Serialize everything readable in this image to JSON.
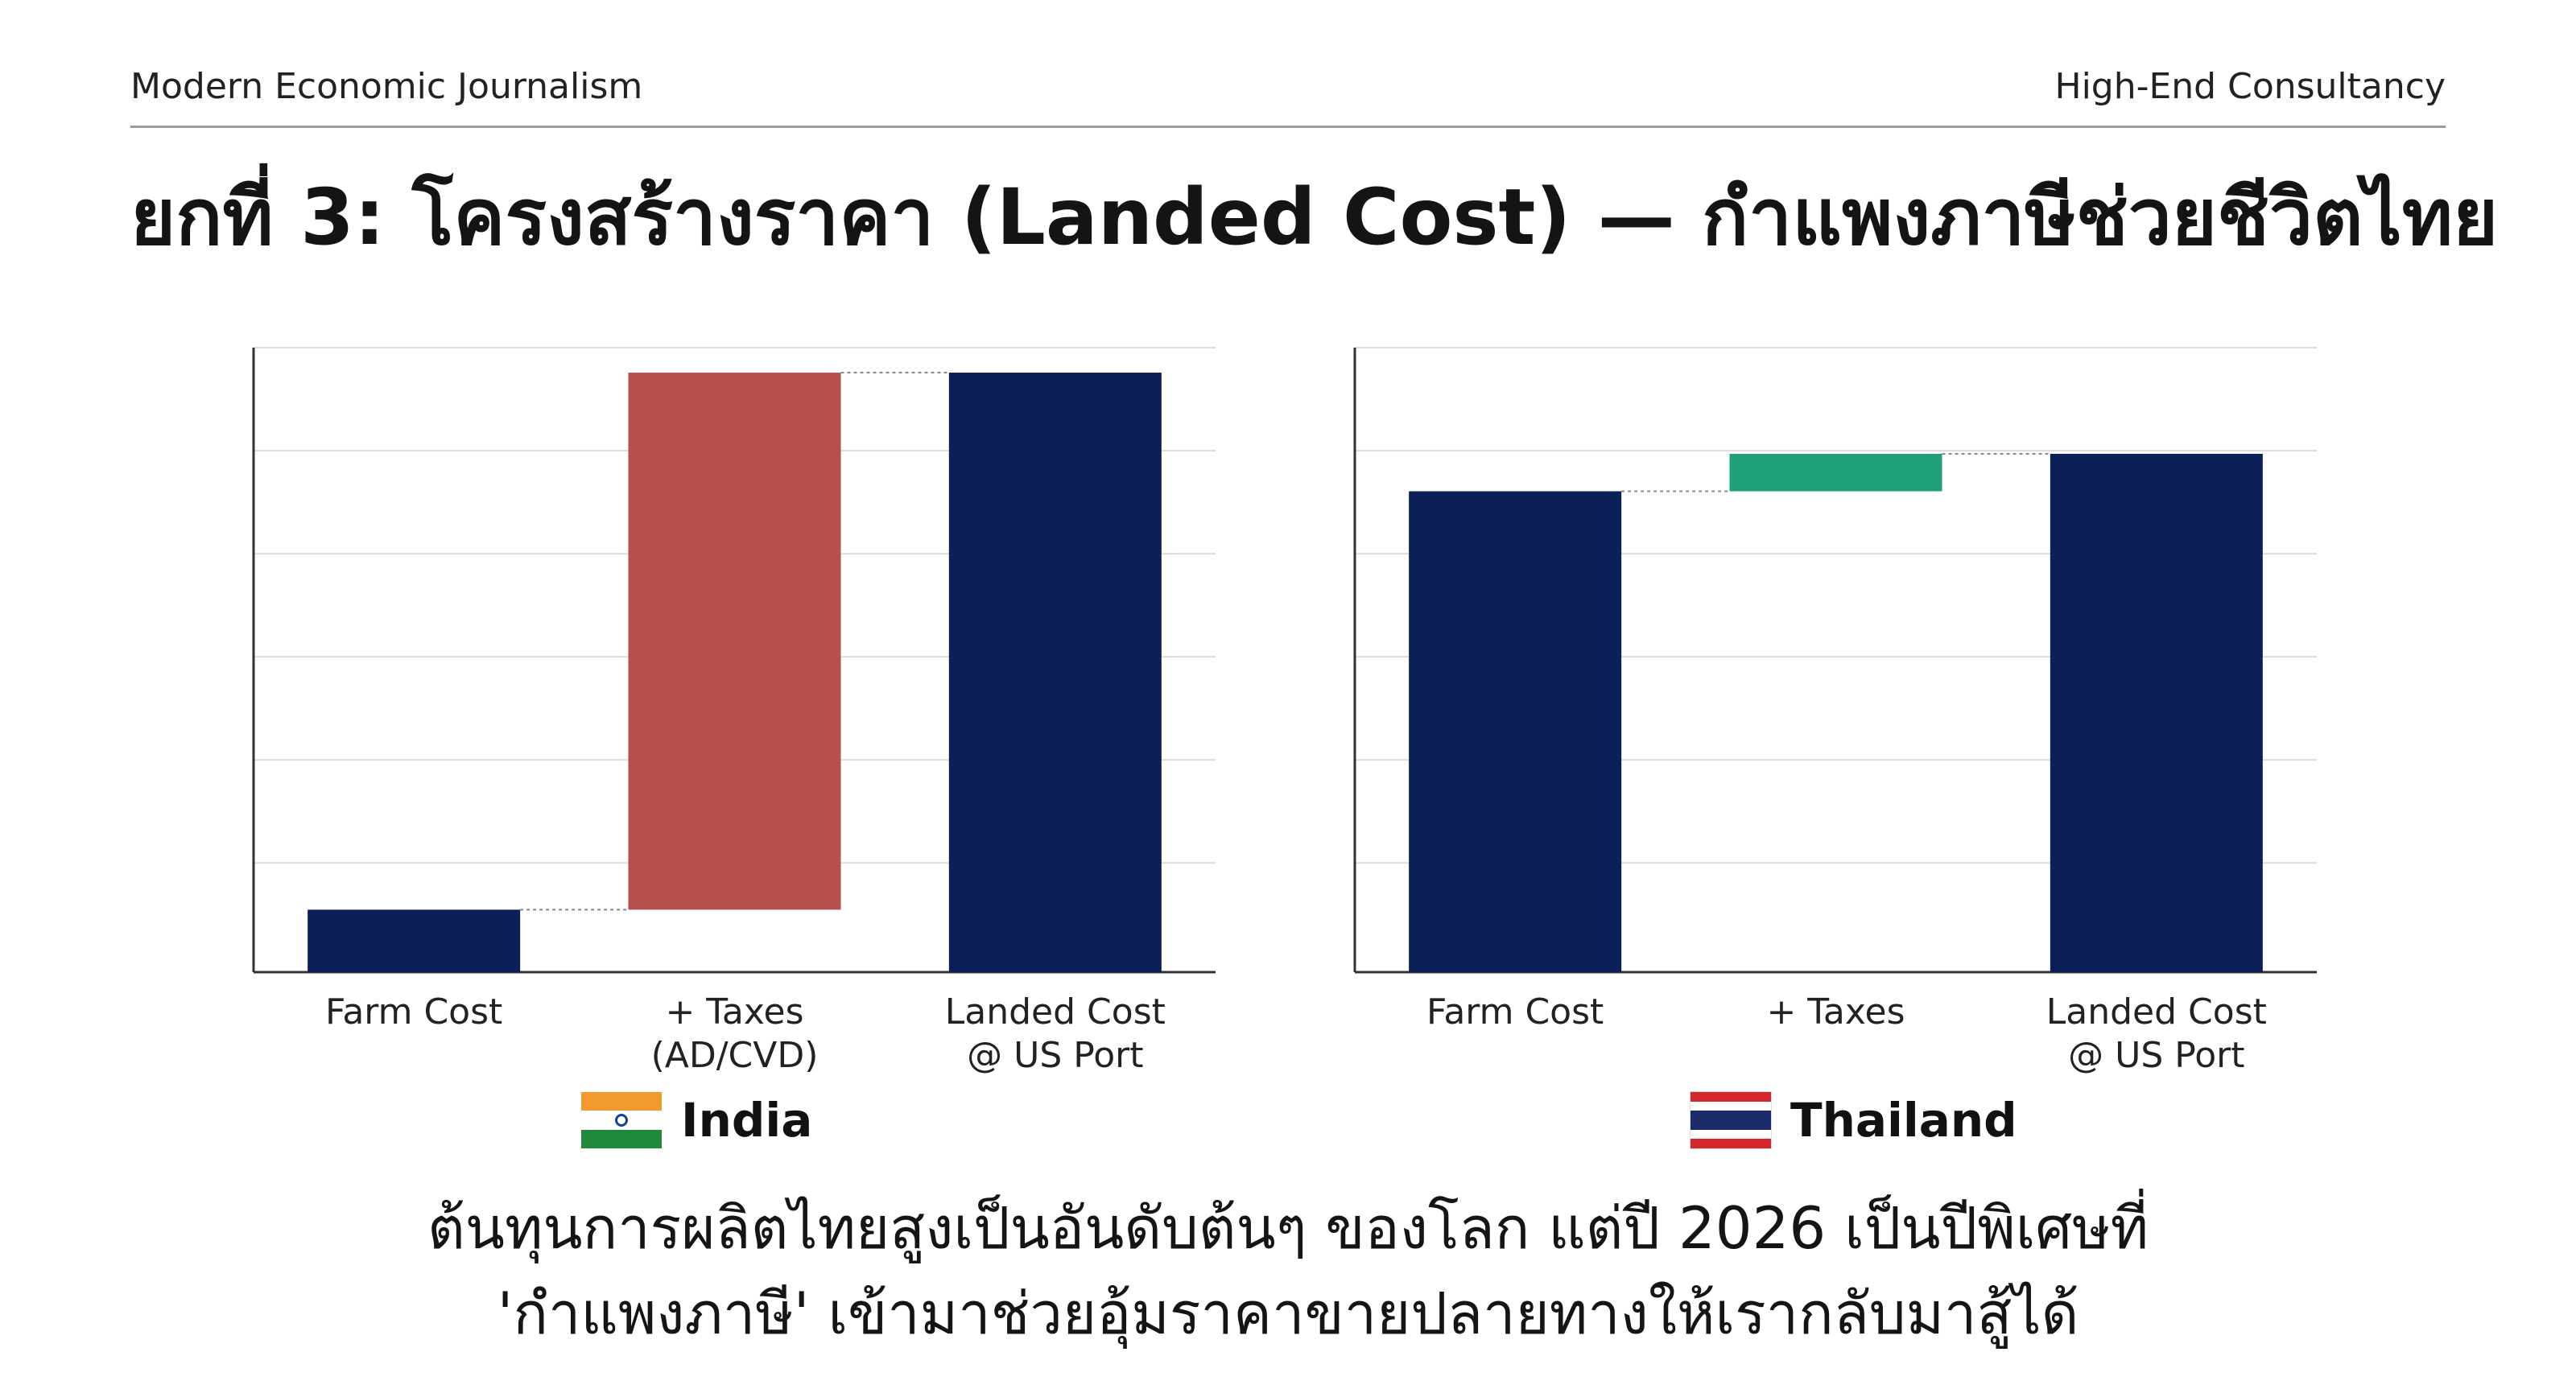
{
  "header": {
    "left": "Modern Economic Journalism",
    "right": "High-End Consultancy"
  },
  "title": "ยกที่ 3: โครงสร้างราคา (Landed Cost) — กำแพงภาษีช่วยชีวิตไทย",
  "colors": {
    "navy": "#0b2057",
    "red_tax": "#b5504d",
    "green_tax": "#1fa07a",
    "grid": "#dcdcdc",
    "axis": "#333333"
  },
  "chart_data": [
    {
      "type": "waterfall",
      "legend": "India",
      "legend_icon": "india-flag-icon",
      "categories": [
        [
          "Farm Cost"
        ],
        [
          "+ Taxes",
          "(AD/CVD)"
        ],
        [
          "Landed Cost",
          "@ US Port"
        ]
      ],
      "values": [
        10,
        86,
        96
      ],
      "ylim": [
        0,
        100
      ],
      "gridlines": 6,
      "show_axis_ticks": false
    },
    {
      "type": "waterfall",
      "legend": "Thailand",
      "legend_icon": "thailand-flag-icon",
      "categories": [
        [
          "Farm Cost"
        ],
        [
          "+ Taxes"
        ],
        [
          "Landed Cost",
          "@ US Port"
        ]
      ],
      "values": [
        77,
        6,
        83
      ],
      "ylim": [
        0,
        100
      ],
      "gridlines": 6,
      "show_axis_ticks": false
    }
  ],
  "caption": {
    "line1": "ต้นทุนการผลิตไทยสูงเป็นอันดับต้นๆ ของโลก แต่ปี 2026 เป็นปีพิเศษที่",
    "line2": "'กำแพงภาษี' เข้ามาช่วยอุ้มราคาขายปลายทางให้เรากลับมาสู้ได้"
  }
}
